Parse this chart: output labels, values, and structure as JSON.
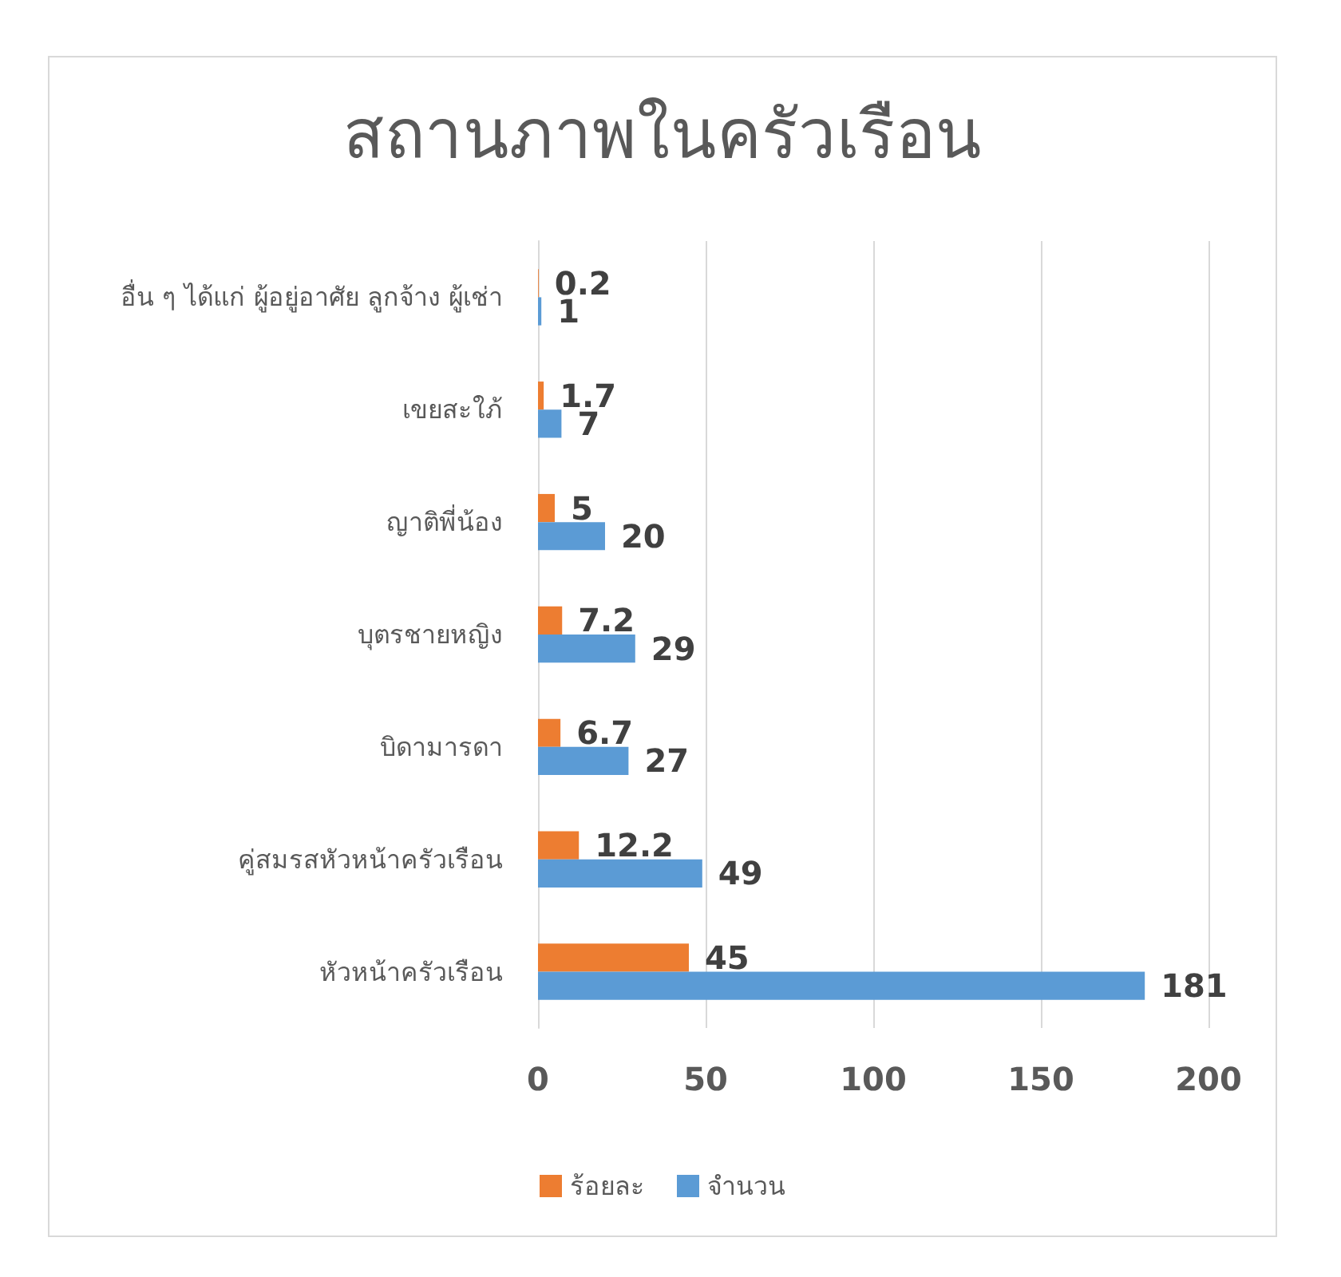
{
  "chart_data": {
    "type": "bar",
    "orientation": "horizontal",
    "title": "สถานภาพในครัวเรือน",
    "categories": [
      "อื่น ๆ ได้แก่ ผู้อยู่อาศัย ลูกจ้าง ผู้เช่า",
      "เขยสะใภ้",
      "ญาติพี่น้อง",
      "บุตรชายหญิง",
      "บิดามารดา",
      "คู่สมรสหัวหน้าครัวเรือน",
      "หัวหน้าครัวเรือน"
    ],
    "series": [
      {
        "name": "ร้อยละ",
        "color": "#ed7d31",
        "values": [
          0.2,
          1.7,
          5,
          7.2,
          6.7,
          12.2,
          45
        ]
      },
      {
        "name": "จำนวน",
        "color": "#5b9bd5",
        "values": [
          1,
          7,
          20,
          29,
          27,
          49,
          181
        ]
      }
    ],
    "xlim": [
      0,
      200
    ],
    "xticks": [
      0,
      50,
      100,
      150,
      200
    ],
    "grid": "x",
    "legend": "bottom",
    "data_labels": true
  }
}
